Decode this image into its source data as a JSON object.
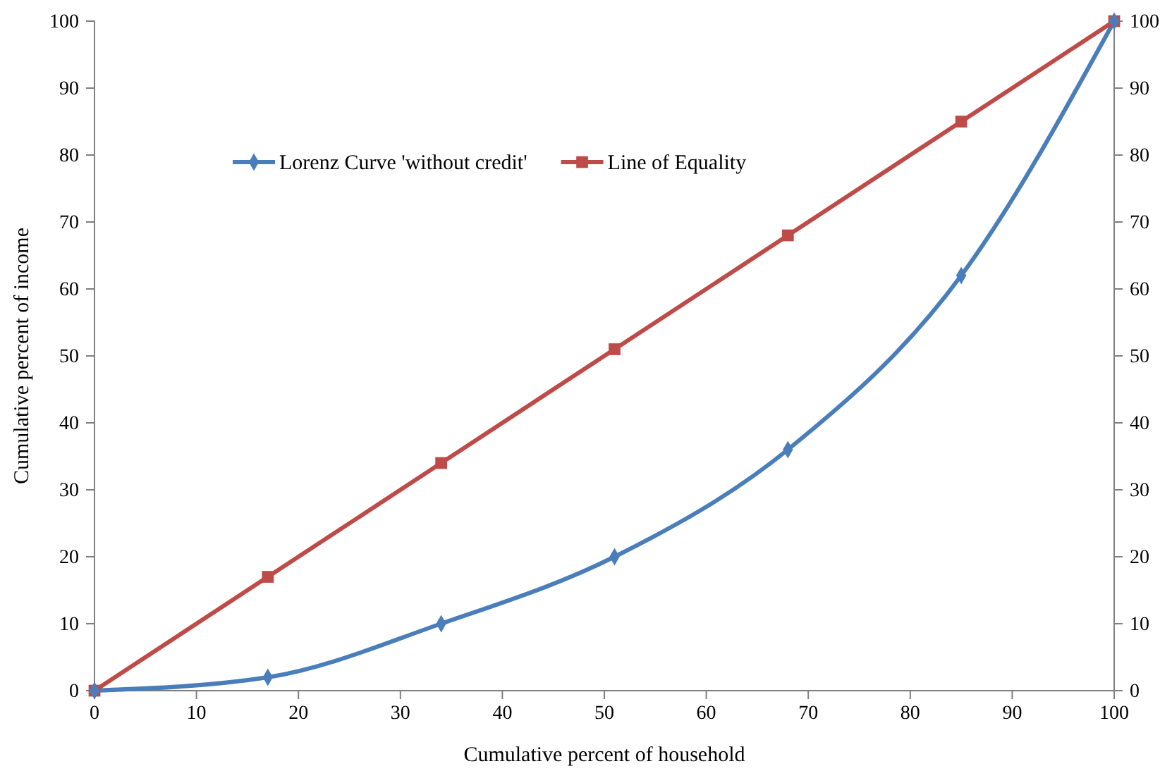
{
  "chart_data": {
    "type": "line",
    "xlabel": "Cumulative  percent  of  household",
    "ylabel": "Cumulative  percent  of  income",
    "x": [
      0,
      17,
      34,
      51,
      68,
      85,
      100
    ],
    "series": [
      {
        "name": "Lorenz Curve 'without credit'",
        "color": "#4a7ebb",
        "values": [
          0,
          2,
          10,
          20,
          36,
          62,
          100
        ],
        "marker": "diamond"
      },
      {
        "name": "Line of Equality",
        "color": "#be4b48",
        "values": [
          0,
          17,
          34,
          51,
          68,
          85,
          100
        ],
        "marker": "square"
      }
    ],
    "xlim": [
      0,
      100
    ],
    "xticks": [
      0,
      10,
      20,
      30,
      40,
      50,
      60,
      70,
      80,
      90,
      100
    ],
    "ylim": [
      0,
      100
    ],
    "yticks": [
      0,
      10,
      20,
      30,
      40,
      50,
      60,
      70,
      80,
      90,
      100
    ],
    "y2lim": [
      0,
      100
    ],
    "y2ticks": [
      0,
      10,
      20,
      30,
      40,
      50,
      60,
      70,
      80,
      90,
      100
    ],
    "grid": false,
    "legend": "top left",
    "line_style": "solid"
  }
}
